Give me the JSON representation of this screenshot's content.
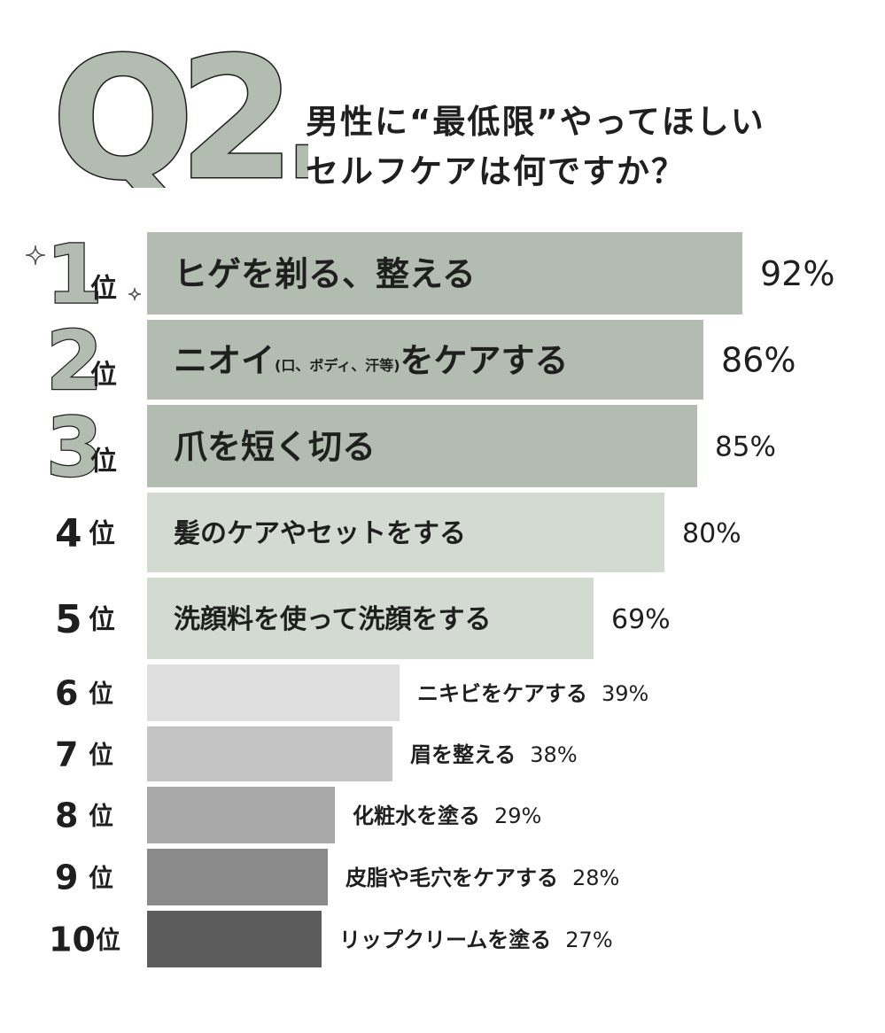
{
  "question": {
    "badge": "Q2.",
    "line1": "男性に“最低限”やってほしい",
    "line2": "セルフケアは何ですか？"
  },
  "rank_suffix": "位",
  "colors": {
    "bar_top3": "#b3bcb0",
    "bar_4_5": "#d3dad1",
    "bar_6": "#dedede",
    "bar_7": "#c4c4c4",
    "bar_8": "#a8a8a8",
    "bar_9": "#8a8a8a",
    "bar_10": "#5c5c5c",
    "sparkle": "#555555"
  },
  "chart_data": {
    "type": "bar",
    "orientation": "horizontal",
    "title": "男性に“最低限”やってほしいセルフケアは何ですか？",
    "ranks": [
      "1",
      "2",
      "3",
      "4",
      "5",
      "6",
      "7",
      "8",
      "9",
      "10"
    ],
    "categories": [
      "ヒゲを剃る、整える",
      "ニオイ(口、ボディ、汗等)をケアする",
      "爪を短く切る",
      "髪のケアやセットをする",
      "洗顔料を使って洗顔をする",
      "ニキビをケアする",
      "眉を整える",
      "化粧水を塗る",
      "皮脂や毛穴をケアする",
      "リップクリームを塗る"
    ],
    "label_main": [
      "ヒゲを剃る、整える",
      "ニオイ",
      "爪を短く切る",
      "髪のケアやセットをする",
      "洗顔料を使って洗顔をする",
      "ニキビをケアする",
      "眉を整える",
      "化粧水を塗る",
      "皮脂や毛穴をケアする",
      "リップクリームを塗る"
    ],
    "label_note": [
      "",
      "(口、ボディ、汗等)",
      "",
      "",
      "",
      "",
      "",
      "",
      "",
      ""
    ],
    "label_tail": [
      "",
      "をケアする",
      "",
      "",
      "",
      "",
      "",
      "",
      "",
      ""
    ],
    "values": [
      92,
      86,
      85,
      80,
      69,
      39,
      38,
      29,
      28,
      27
    ],
    "value_labels": [
      "92%",
      "86%",
      "85%",
      "80%",
      "69%",
      "39%",
      "38%",
      "29%",
      "28%",
      "27%"
    ],
    "xlim": [
      0,
      100
    ],
    "legend": "none",
    "grid": false
  }
}
